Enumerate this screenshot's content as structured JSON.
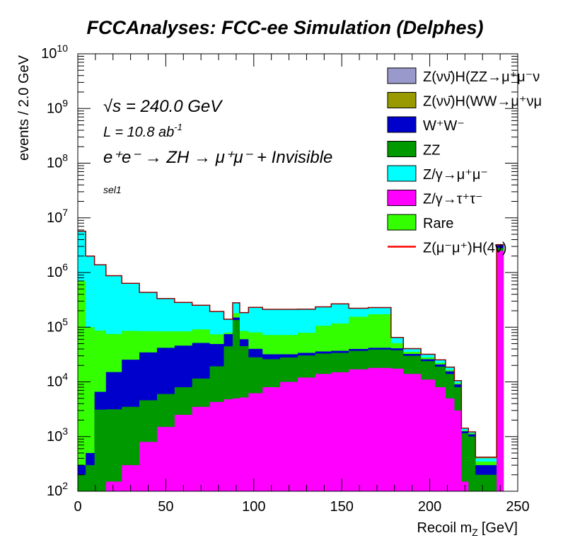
{
  "chart_data": {
    "type": "area",
    "title": "FCCAnalyses: FCC-ee Simulation (Delphes)",
    "xlabel": "Recoil m",
    "xlabel_sub": "Z",
    "xlabel_unit": "[GeV]",
    "ylabel": "events / 2.0 GeV",
    "xlim": [
      0,
      250
    ],
    "ylim": [
      100,
      10000000000
    ],
    "log_y": true,
    "stacked": true,
    "x_ticks": [
      "0",
      "50",
      "100",
      "150",
      "200",
      "250"
    ],
    "y_ticks": [
      {
        "base": "10",
        "exp": "2"
      },
      {
        "base": "10",
        "exp": "3"
      },
      {
        "base": "10",
        "exp": "4"
      },
      {
        "base": "10",
        "exp": "5"
      },
      {
        "base": "10",
        "exp": "6"
      },
      {
        "base": "10",
        "exp": "7"
      },
      {
        "base": "10",
        "exp": "8"
      },
      {
        "base": "10",
        "exp": "9"
      },
      {
        "base": "10",
        "exp": "10"
      }
    ],
    "annotations": {
      "sqrt_s": "√s = 240.0 GeV",
      "lumi": "L = 10.8 ab",
      "lumi_exp": "-1",
      "process": "e⁺e⁻ → ZH → μ⁺μ⁻ + Invisible",
      "selection": "sel1"
    },
    "legend_position": "top-right",
    "x": [
      2,
      7,
      12,
      20,
      30,
      40,
      50,
      60,
      70,
      80,
      86,
      90,
      94,
      100,
      110,
      120,
      130,
      140,
      148,
      160,
      170,
      176,
      180,
      190,
      200,
      206,
      212,
      216,
      220,
      224,
      228,
      232,
      236,
      240
    ],
    "series": [
      {
        "name": "Z/γ→τ⁺τ⁻",
        "color": "#ff00ff",
        "values": [
          100,
          100,
          100,
          150,
          300,
          800,
          1500,
          2500,
          3500,
          4300,
          4800,
          5000,
          5200,
          6200,
          8000,
          10000,
          12000,
          14000,
          15000,
          17000,
          18000,
          18000,
          17500,
          14000,
          11000,
          8000,
          5000,
          3000,
          150,
          100,
          100,
          100,
          100,
          2500000
        ]
      },
      {
        "name": "ZZ",
        "color": "#009900",
        "values": [
          100,
          200,
          3000,
          3000,
          3200,
          3800,
          4500,
          5500,
          8000,
          15000,
          40000,
          130000,
          40000,
          22000,
          18000,
          18000,
          18500,
          19000,
          19000,
          20000,
          21000,
          21000,
          20500,
          16000,
          13000,
          11000,
          9000,
          5000,
          1000,
          900,
          100,
          100,
          100,
          300000
        ]
      },
      {
        "name": "W⁺W⁻",
        "color": "#0000cc",
        "values": [
          100,
          200,
          3500,
          12000,
          22000,
          30000,
          36000,
          38000,
          40000,
          30000,
          30000,
          15000,
          15000,
          12000,
          6000,
          4000,
          3500,
          3000,
          3000,
          3000,
          3000,
          3000,
          3000,
          2500,
          2000,
          1800,
          1600,
          1000,
          100,
          100,
          100,
          100,
          100,
          400000
        ]
      },
      {
        "name": "Rare",
        "color": "#33ff00",
        "values": [
          700000,
          100000,
          80000,
          60000,
          60000,
          50000,
          42000,
          38000,
          40000,
          25000,
          5000,
          30000,
          25000,
          40000,
          40000,
          40000,
          45000,
          70000,
          80000,
          115000,
          130000,
          130000,
          10000,
          3000,
          2000,
          1500,
          1000,
          500,
          50,
          50,
          50,
          50,
          50,
          10000
        ]
      },
      {
        "name": "Z/γ→μ⁺μ⁻",
        "color": "#00ffff",
        "values": [
          5000000,
          1900000,
          1300000,
          800000,
          550000,
          350000,
          250000,
          200000,
          160000,
          120000,
          60000,
          100000,
          100000,
          150000,
          140000,
          140000,
          135000,
          130000,
          150000,
          67000,
          57000,
          57000,
          14000,
          5000,
          4000,
          3000,
          2000,
          1000,
          100,
          50,
          50,
          50,
          50,
          20000
        ]
      },
      {
        "name": "Z(νν̄)H(WW→μ⁺νμ⁻ν̄)",
        "color": "#999900",
        "values": [
          10,
          10,
          10,
          10,
          10,
          10,
          10,
          10,
          10,
          10,
          10,
          10,
          10,
          10,
          10,
          10,
          10,
          10,
          10,
          10,
          10,
          10,
          10,
          10,
          10,
          10,
          10,
          10,
          10,
          10,
          10,
          10,
          10,
          10
        ]
      },
      {
        "name": "Z(νν̄)H(ZZ→μ⁺μ⁻νν̄)",
        "color": "#9999cc",
        "values": [
          10,
          10,
          10,
          10,
          10,
          10,
          10,
          10,
          10,
          10,
          10,
          10,
          10,
          10,
          10,
          10,
          10,
          10,
          10,
          10,
          10,
          10,
          10,
          10,
          10,
          10,
          10,
          10,
          10,
          10,
          10,
          10,
          10,
          10
        ]
      }
    ],
    "signal": {
      "name": "Z(μ⁻μ⁺)H(4ν)",
      "color": "#ff0000",
      "values": [
        0,
        0,
        0,
        0,
        0,
        0,
        0,
        0,
        0,
        0,
        0,
        0,
        0,
        0,
        0,
        0,
        0,
        0,
        0,
        0,
        0,
        0,
        0,
        0,
        0,
        0,
        0,
        0,
        0,
        0,
        0,
        0,
        0,
        0
      ]
    },
    "legend": [
      {
        "label": "Z(νν̄)H(ZZ→μ⁺μ⁻ν",
        "color": "#9999cc",
        "style": "box"
      },
      {
        "label": "Z(νν̄)H(WW→μ⁺νμ",
        "color": "#999900",
        "style": "box"
      },
      {
        "label": "W⁺W⁻",
        "color": "#0000cc",
        "style": "box"
      },
      {
        "label": "ZZ",
        "color": "#009900",
        "style": "box"
      },
      {
        "label": "Z/γ→μ⁺μ⁻",
        "color": "#00ffff",
        "style": "box"
      },
      {
        "label": "Z/γ→τ⁺τ⁻",
        "color": "#ff00ff",
        "style": "box"
      },
      {
        "label": "Rare",
        "color": "#33ff00",
        "style": "box"
      },
      {
        "label": "Z(μ⁻μ⁺)H(4ν)",
        "color": "#ff0000",
        "style": "line"
      }
    ]
  }
}
